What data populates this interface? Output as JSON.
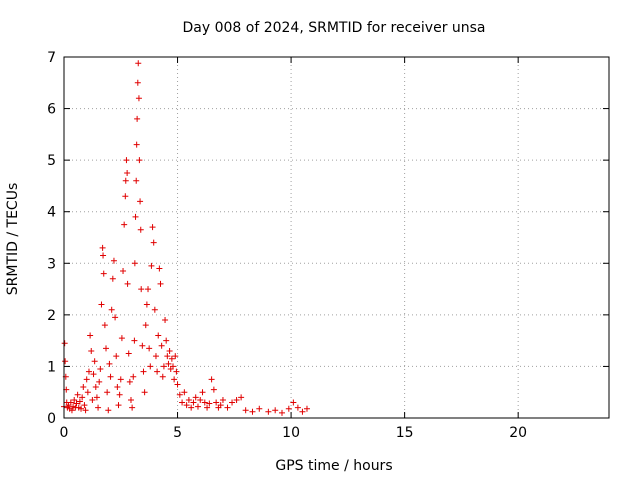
{
  "chart_data": {
    "type": "scatter",
    "title": "Day 008 of 2024, SRMTID for receiver unsa",
    "xlabel": "GPS time / hours",
    "ylabel": "SRMTID / TECUs",
    "xlim": [
      0,
      24
    ],
    "ylim": [
      0,
      7
    ],
    "xticks": [
      0,
      5,
      10,
      15,
      20
    ],
    "xtick_labels": [
      "0",
      "5",
      "10",
      "15",
      "20"
    ],
    "yticks": [
      0,
      1,
      2,
      3,
      4,
      5,
      6,
      7
    ],
    "ytick_labels": [
      "0",
      "1",
      "2",
      "3",
      "4",
      "5",
      "6",
      "7"
    ],
    "grid": true,
    "marker": "plus",
    "color": "#e00000",
    "series": [
      {
        "name": "SRMTID",
        "points": [
          [
            0.0,
            0.22
          ],
          [
            0.03,
            1.45
          ],
          [
            0.05,
            1.1
          ],
          [
            0.08,
            0.8
          ],
          [
            0.1,
            0.55
          ],
          [
            0.12,
            0.3
          ],
          [
            0.15,
            0.2
          ],
          [
            0.2,
            0.25
          ],
          [
            0.25,
            0.18
          ],
          [
            0.3,
            0.3
          ],
          [
            0.35,
            0.15
          ],
          [
            0.4,
            0.22
          ],
          [
            0.45,
            0.35
          ],
          [
            0.5,
            0.2
          ],
          [
            0.55,
            0.28
          ],
          [
            0.6,
            0.45
          ],
          [
            0.65,
            0.2
          ],
          [
            0.7,
            0.32
          ],
          [
            0.75,
            0.18
          ],
          [
            0.8,
            0.4
          ],
          [
            0.85,
            0.6
          ],
          [
            0.9,
            0.25
          ],
          [
            0.95,
            0.15
          ],
          [
            1.0,
            0.75
          ],
          [
            1.05,
            0.5
          ],
          [
            1.1,
            0.9
          ],
          [
            1.15,
            1.6
          ],
          [
            1.2,
            1.3
          ],
          [
            1.25,
            0.35
          ],
          [
            1.3,
            0.85
          ],
          [
            1.35,
            1.1
          ],
          [
            1.4,
            0.6
          ],
          [
            1.45,
            0.4
          ],
          [
            1.5,
            0.2
          ],
          [
            1.55,
            0.7
          ],
          [
            1.6,
            0.95
          ],
          [
            1.65,
            2.2
          ],
          [
            1.7,
            3.3
          ],
          [
            1.72,
            3.15
          ],
          [
            1.75,
            2.8
          ],
          [
            1.8,
            1.8
          ],
          [
            1.85,
            1.35
          ],
          [
            1.9,
            0.5
          ],
          [
            1.95,
            0.15
          ],
          [
            2.0,
            1.05
          ],
          [
            2.05,
            0.8
          ],
          [
            2.1,
            2.1
          ],
          [
            2.15,
            2.7
          ],
          [
            2.2,
            3.05
          ],
          [
            2.25,
            1.95
          ],
          [
            2.3,
            1.2
          ],
          [
            2.35,
            0.6
          ],
          [
            2.4,
            0.25
          ],
          [
            2.45,
            0.45
          ],
          [
            2.5,
            0.75
          ],
          [
            2.55,
            1.55
          ],
          [
            2.6,
            2.85
          ],
          [
            2.65,
            3.75
          ],
          [
            2.7,
            4.3
          ],
          [
            2.72,
            4.6
          ],
          [
            2.75,
            5.0
          ],
          [
            2.78,
            4.75
          ],
          [
            2.8,
            2.6
          ],
          [
            2.85,
            1.25
          ],
          [
            2.9,
            0.7
          ],
          [
            2.95,
            0.35
          ],
          [
            3.0,
            0.2
          ],
          [
            3.05,
            0.8
          ],
          [
            3.1,
            1.5
          ],
          [
            3.12,
            3.0
          ],
          [
            3.15,
            3.9
          ],
          [
            3.18,
            4.6
          ],
          [
            3.2,
            5.3
          ],
          [
            3.22,
            5.8
          ],
          [
            3.25,
            6.5
          ],
          [
            3.27,
            6.88
          ],
          [
            3.3,
            6.2
          ],
          [
            3.32,
            5.0
          ],
          [
            3.35,
            4.2
          ],
          [
            3.38,
            3.65
          ],
          [
            3.4,
            2.5
          ],
          [
            3.45,
            1.4
          ],
          [
            3.5,
            0.9
          ],
          [
            3.55,
            0.5
          ],
          [
            3.6,
            1.8
          ],
          [
            3.65,
            2.2
          ],
          [
            3.7,
            2.5
          ],
          [
            3.75,
            1.35
          ],
          [
            3.8,
            1.0
          ],
          [
            3.85,
            2.95
          ],
          [
            3.9,
            3.7
          ],
          [
            3.95,
            3.4
          ],
          [
            4.0,
            2.1
          ],
          [
            4.05,
            1.2
          ],
          [
            4.1,
            0.9
          ],
          [
            4.15,
            1.6
          ],
          [
            4.2,
            2.9
          ],
          [
            4.25,
            2.6
          ],
          [
            4.3,
            1.4
          ],
          [
            4.35,
            0.8
          ],
          [
            4.4,
            1.0
          ],
          [
            4.45,
            1.9
          ],
          [
            4.5,
            1.5
          ],
          [
            4.55,
            1.2
          ],
          [
            4.6,
            1.05
          ],
          [
            4.65,
            1.3
          ],
          [
            4.7,
            0.95
          ],
          [
            4.75,
            1.15
          ],
          [
            4.8,
            1.0
          ],
          [
            4.85,
            0.75
          ],
          [
            4.9,
            1.2
          ],
          [
            4.95,
            0.9
          ],
          [
            5.0,
            0.65
          ],
          [
            5.1,
            0.45
          ],
          [
            5.2,
            0.3
          ],
          [
            5.3,
            0.5
          ],
          [
            5.4,
            0.25
          ],
          [
            5.5,
            0.35
          ],
          [
            5.6,
            0.2
          ],
          [
            5.7,
            0.3
          ],
          [
            5.8,
            0.4
          ],
          [
            5.9,
            0.22
          ],
          [
            6.0,
            0.35
          ],
          [
            6.1,
            0.5
          ],
          [
            6.2,
            0.3
          ],
          [
            6.3,
            0.2
          ],
          [
            6.4,
            0.28
          ],
          [
            6.5,
            0.75
          ],
          [
            6.6,
            0.55
          ],
          [
            6.7,
            0.3
          ],
          [
            6.8,
            0.2
          ],
          [
            6.9,
            0.25
          ],
          [
            7.0,
            0.35
          ],
          [
            7.2,
            0.2
          ],
          [
            7.4,
            0.3
          ],
          [
            7.6,
            0.35
          ],
          [
            7.8,
            0.4
          ],
          [
            8.0,
            0.15
          ],
          [
            8.3,
            0.12
          ],
          [
            8.6,
            0.18
          ],
          [
            9.0,
            0.12
          ],
          [
            9.3,
            0.15
          ],
          [
            9.6,
            0.1
          ],
          [
            9.9,
            0.18
          ],
          [
            10.1,
            0.3
          ],
          [
            10.3,
            0.2
          ],
          [
            10.5,
            0.12
          ],
          [
            10.7,
            0.18
          ]
        ]
      }
    ]
  }
}
